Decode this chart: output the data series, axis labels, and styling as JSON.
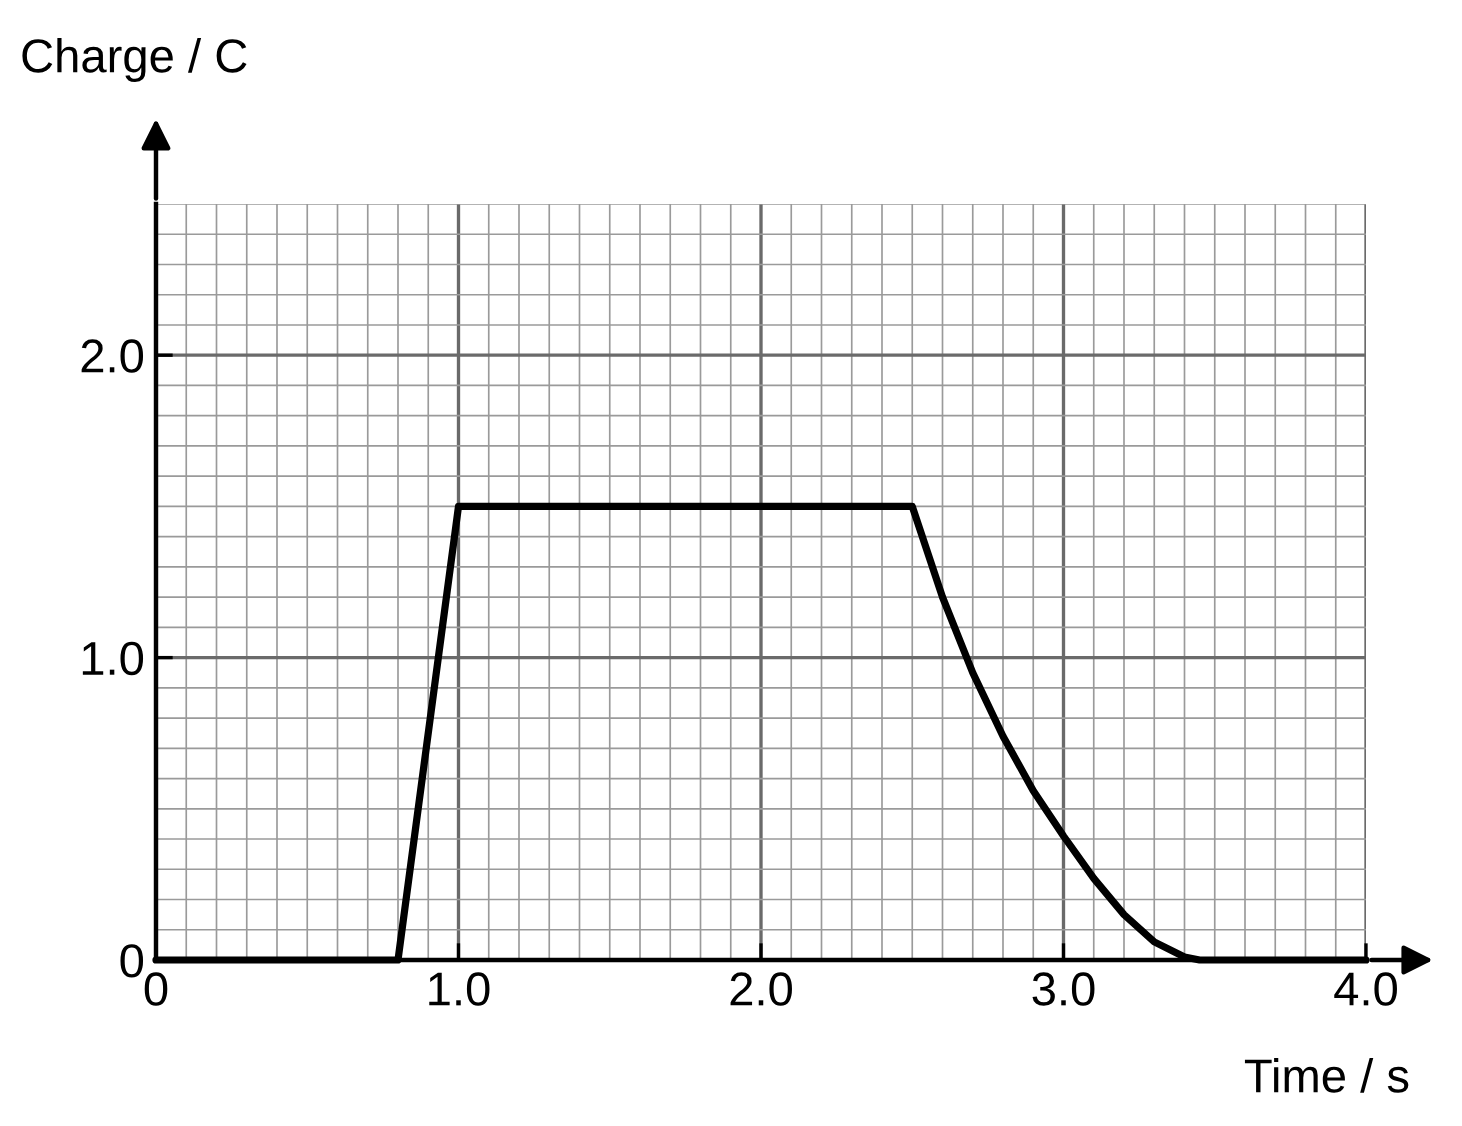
{
  "chart_data": {
    "type": "line",
    "ylabel": "Charge / C",
    "xlabel": "Time / s",
    "series": [
      {
        "color": "#000000",
        "x": [
          0,
          0.8,
          1.0,
          2.5,
          2.6,
          2.7,
          2.8,
          2.9,
          3.0,
          3.1,
          3.2,
          3.3,
          3.4,
          3.45,
          4.0
        ],
        "values": [
          0,
          0,
          1.5,
          1.5,
          1.2,
          0.95,
          0.74,
          0.56,
          0.41,
          0.27,
          0.15,
          0.06,
          0.01,
          0,
          0
        ]
      }
    ],
    "xlim": [
      0,
      4.0
    ],
    "ylim": [
      0,
      2.5
    ],
    "xticks": [
      0,
      {
        "value": 1,
        "label": "1.0"
      },
      {
        "value": 2,
        "label": "2.0"
      },
      {
        "value": 3,
        "label": "3.0"
      },
      {
        "value": 4,
        "label": "4.0"
      }
    ],
    "yticks": [
      0,
      {
        "value": 1,
        "label": "1.0"
      },
      {
        "value": 2,
        "label": "2.0"
      }
    ],
    "grid": true,
    "marker": "none",
    "line_style": "solid"
  }
}
